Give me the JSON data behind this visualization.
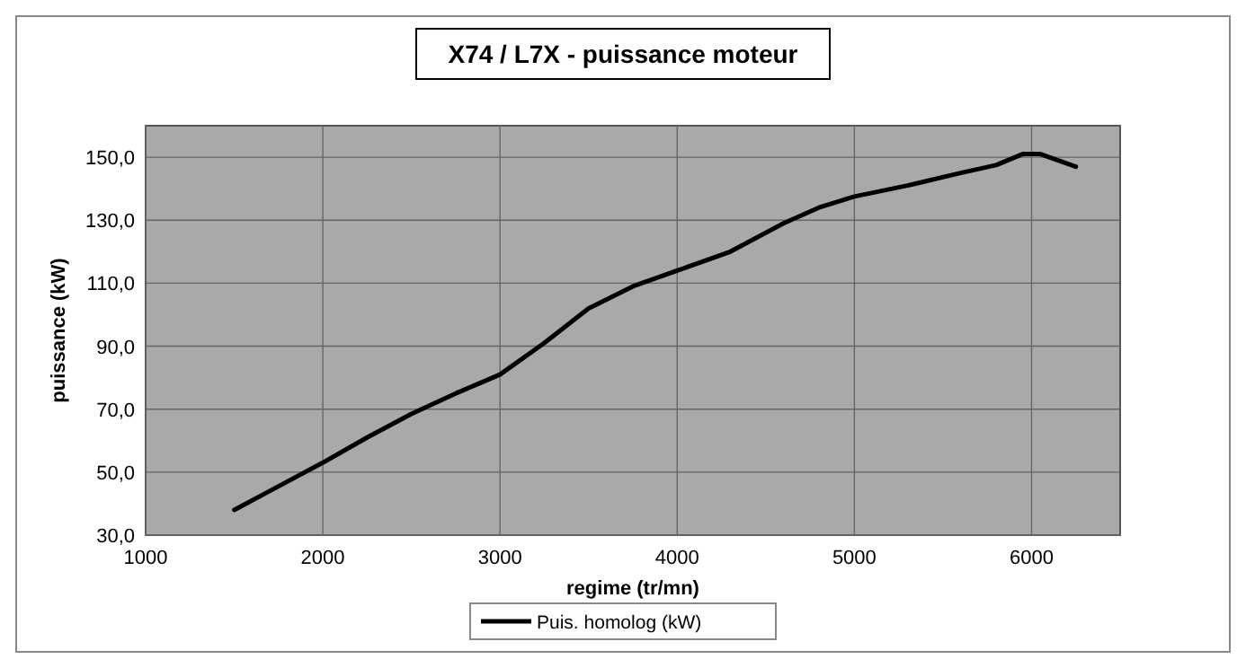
{
  "chart_data": {
    "type": "line",
    "title": "X74 / L7X - puissance moteur",
    "xlabel": "regime (tr/mn)",
    "ylabel": "puissance (kW)",
    "x": [
      1500,
      1750,
      2000,
      2250,
      2500,
      2750,
      3000,
      3250,
      3500,
      3750,
      4000,
      4300,
      4600,
      4800,
      5000,
      5300,
      5600,
      5800,
      5950,
      6050,
      6250
    ],
    "series": [
      {
        "name": "Puis. homolog (kW)",
        "color": "#000000",
        "values": [
          38,
          45.5,
          53,
          61,
          68.5,
          75,
          81,
          91,
          102,
          109,
          114,
          120,
          129,
          134,
          137.5,
          141,
          145,
          147.5,
          151,
          151,
          147
        ]
      }
    ],
    "xlim": [
      1000,
      6500
    ],
    "xticks": [
      1000,
      2000,
      3000,
      4000,
      5000,
      6000
    ],
    "ylim": [
      30,
      160
    ],
    "yticks": [
      {
        "value": 30,
        "label": "30,0"
      },
      {
        "value": 50,
        "label": "50,0"
      },
      {
        "value": 70,
        "label": "70,0"
      },
      {
        "value": 90,
        "label": "90,0"
      },
      {
        "value": 110,
        "label": "110,0"
      },
      {
        "value": 130,
        "label": "130,0"
      },
      {
        "value": 150,
        "label": "150,0"
      }
    ],
    "grid": true,
    "legend": "bottom",
    "marker": "none",
    "line_style": "solid"
  }
}
